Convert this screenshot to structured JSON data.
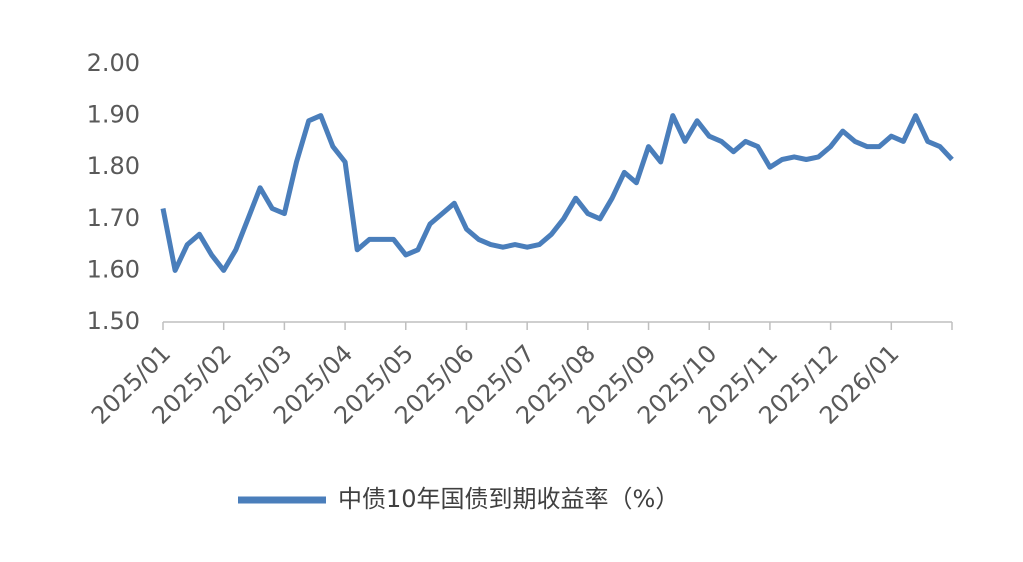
{
  "chart_data": {
    "type": "line",
    "categories": [
      "2025/01",
      null,
      null,
      null,
      null,
      "2025/02",
      null,
      null,
      null,
      null,
      "2025/03",
      null,
      null,
      null,
      null,
      "2025/04",
      null,
      null,
      null,
      null,
      "2025/05",
      null,
      null,
      null,
      null,
      "2025/06",
      null,
      null,
      null,
      null,
      "2025/07",
      null,
      null,
      null,
      null,
      "2025/08",
      null,
      null,
      null,
      null,
      "2025/09",
      null,
      null,
      null,
      null,
      "2025/10",
      null,
      null,
      null,
      null,
      "2025/11",
      null,
      null,
      null,
      null,
      "2025/12",
      null,
      null,
      null,
      null,
      "2026/01",
      null,
      null,
      null,
      null,
      null
    ],
    "series": [
      {
        "name": "中债10年国债到期收益率（%）",
        "color": "#4a7ebb",
        "values": [
          1.72,
          1.6,
          1.65,
          1.67,
          1.63,
          1.6,
          1.64,
          1.7,
          1.76,
          1.72,
          1.71,
          1.81,
          1.89,
          1.9,
          1.84,
          1.81,
          1.64,
          1.66,
          1.66,
          1.66,
          1.63,
          1.64,
          1.69,
          1.71,
          1.73,
          1.68,
          1.66,
          1.65,
          1.645,
          1.65,
          1.645,
          1.65,
          1.67,
          1.7,
          1.74,
          1.71,
          1.7,
          1.74,
          1.79,
          1.77,
          1.84,
          1.81,
          1.9,
          1.85,
          1.89,
          1.86,
          1.85,
          1.83,
          1.85,
          1.84,
          1.8,
          1.815,
          1.82,
          1.815,
          1.82,
          1.84,
          1.87,
          1.85,
          1.84,
          1.84,
          1.86,
          1.85,
          1.9,
          1.85,
          1.84,
          1.815
        ]
      }
    ],
    "ylim": [
      1.5,
      2.0
    ],
    "yticks": [
      {
        "value": 1.5,
        "label": "1.50"
      },
      {
        "value": 1.6,
        "label": "1.60"
      },
      {
        "value": 1.7,
        "label": "1.70"
      },
      {
        "value": 1.8,
        "label": "1.80"
      },
      {
        "value": 1.9,
        "label": "1.90"
      },
      {
        "value": 2.0,
        "label": "2.00"
      }
    ],
    "grid": false
  }
}
